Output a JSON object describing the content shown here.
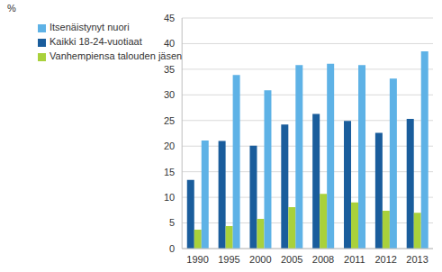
{
  "chart_data": {
    "type": "bar",
    "y_label": "%",
    "categories": [
      "1990",
      "1995",
      "2000",
      "2005",
      "2008",
      "2011",
      "2012",
      "2013"
    ],
    "series": [
      {
        "name": "Kaikki 18-24-vuotiaat",
        "color": "#1a5d9c",
        "values": [
          13.4,
          21.0,
          20.1,
          24.2,
          26.3,
          24.9,
          22.6,
          25.3
        ]
      },
      {
        "name": "Vanhempiensa talouden jäsen",
        "color": "#a9d13b",
        "values": [
          3.7,
          4.4,
          5.8,
          8.1,
          10.7,
          9.0,
          7.4,
          7.0
        ]
      },
      {
        "name": "Itsenäistynyt nuori",
        "color": "#5eb2e6",
        "values": [
          21.1,
          33.9,
          30.9,
          35.8,
          36.1,
          35.8,
          33.2,
          38.5
        ]
      }
    ],
    "ylim": [
      0,
      45
    ],
    "yticks": [
      0,
      5,
      10,
      15,
      20,
      25,
      30,
      35,
      40,
      45
    ],
    "grid": true,
    "legend": "upper left"
  }
}
